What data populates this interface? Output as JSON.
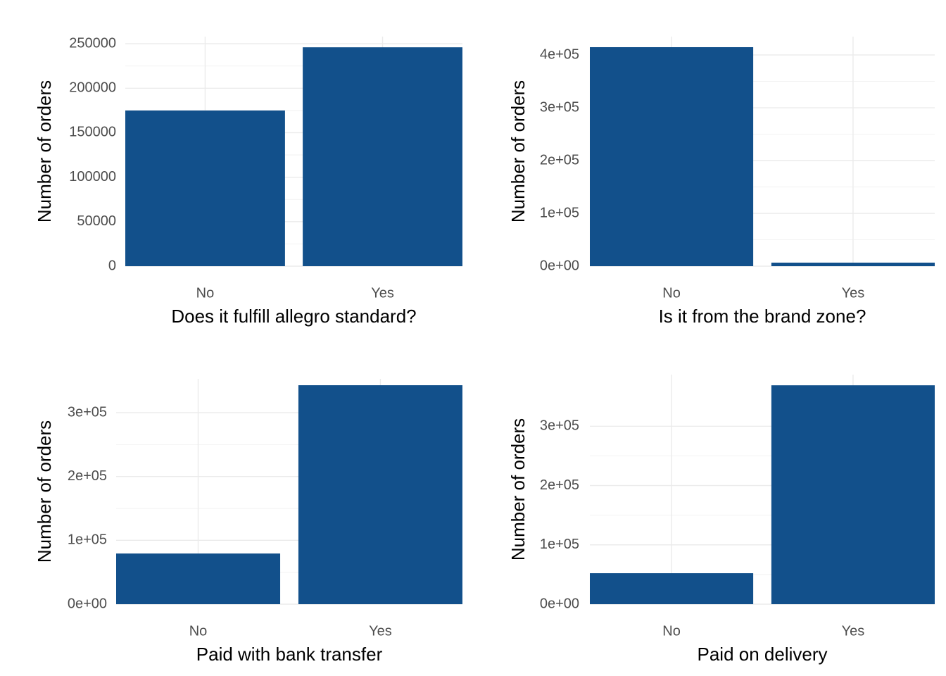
{
  "chart_data": [
    {
      "type": "bar",
      "x_label": "Does it fulfill allegro standard?",
      "y_label": "Number of orders",
      "categories": [
        "No",
        "Yes"
      ],
      "values": [
        175000,
        246000
      ],
      "color": "#12508b",
      "ylim": [
        0,
        258000
      ],
      "yticks": [
        0,
        50000,
        100000,
        150000,
        200000,
        250000
      ],
      "grid": true
    },
    {
      "type": "bar",
      "x_label": "Is it from the brand zone?",
      "y_label": "Number of orders",
      "categories": [
        "No",
        "Yes"
      ],
      "values": [
        414700,
        6700
      ],
      "color": "#12508b",
      "ylim": [
        0,
        434700
      ],
      "yticks": [
        {
          "value": 0,
          "label": "0e+00"
        },
        {
          "value": 100000,
          "label": "1e+05"
        },
        {
          "value": 200000,
          "label": "2e+05"
        },
        {
          "value": 300000,
          "label": "3e+05"
        },
        {
          "value": 400000,
          "label": "4e+05"
        }
      ],
      "grid": true
    },
    {
      "type": "bar",
      "x_label": "Paid with bank transfer",
      "y_label": "Number of orders",
      "categories": [
        "No",
        "Yes"
      ],
      "values": [
        79400,
        343000
      ],
      "color": "#12508b",
      "ylim": [
        0,
        353000
      ],
      "yticks": [
        {
          "value": 0,
          "label": "0e+00"
        },
        {
          "value": 100000,
          "label": "1e+05"
        },
        {
          "value": 200000,
          "label": "2e+05"
        },
        {
          "value": 300000,
          "label": "3e+05"
        }
      ],
      "grid": true
    },
    {
      "type": "bar",
      "x_label": "Paid on delivery",
      "y_label": "Number of orders",
      "categories": [
        "No",
        "Yes"
      ],
      "values": [
        52200,
        369000
      ],
      "color": "#12508b",
      "ylim": [
        0,
        387000
      ],
      "yticks": [
        {
          "value": 0,
          "label": "0e+00"
        },
        {
          "value": 100000,
          "label": "1e+05"
        },
        {
          "value": 200000,
          "label": "2e+05"
        },
        {
          "value": 300000,
          "label": "3e+05"
        }
      ],
      "grid": true
    }
  ]
}
